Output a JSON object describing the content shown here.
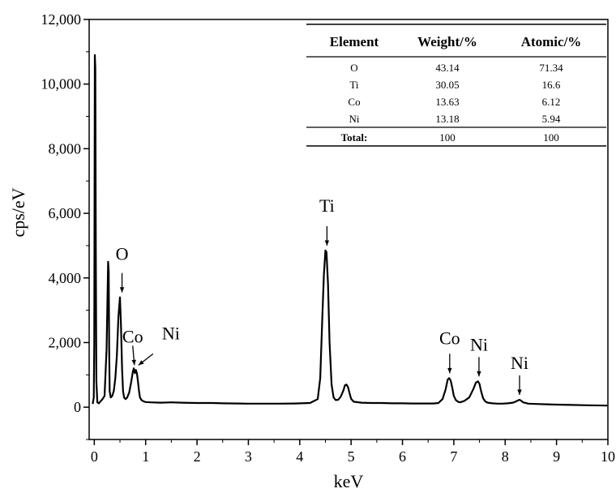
{
  "chart_data": {
    "type": "line",
    "title": "",
    "xlabel": "keV",
    "ylabel": "cps/eV",
    "xlim": [
      -0.1,
      10
    ],
    "ylim": [
      -1000,
      12000
    ],
    "x_ticks": [
      0,
      1,
      2,
      3,
      4,
      5,
      6,
      7,
      8,
      9,
      10
    ],
    "x_tick_labels": [
      "0",
      "1",
      "2",
      "3",
      "4",
      "5",
      "6",
      "7",
      "8",
      "9",
      "10"
    ],
    "y_ticks": [
      0,
      2000,
      4000,
      6000,
      8000,
      10000,
      12000
    ],
    "y_tick_labels": [
      "0",
      "2,000",
      "4,000",
      "6,000",
      "8,000",
      "10,000",
      "12,000"
    ],
    "grid": false,
    "line_color": "#000000",
    "series": [
      {
        "x": [
          -0.03,
          -0.01,
          0.0,
          0.01,
          0.02,
          0.03,
          0.04,
          0.06,
          0.09,
          0.12,
          0.16,
          0.2,
          0.24,
          0.27,
          0.28,
          0.29,
          0.3,
          0.32,
          0.35,
          0.38,
          0.41,
          0.44,
          0.47,
          0.5,
          0.52,
          0.54,
          0.56,
          0.58,
          0.61,
          0.64,
          0.68,
          0.72,
          0.75,
          0.77,
          0.79,
          0.81,
          0.83,
          0.85,
          0.87,
          0.89,
          0.92,
          0.96,
          1.0,
          1.1,
          1.3,
          1.5,
          1.7,
          2.0,
          2.3,
          2.5,
          2.8,
          3.0,
          3.3,
          3.6,
          3.9,
          4.2,
          4.35,
          4.4,
          4.44,
          4.47,
          4.5,
          4.52,
          4.55,
          4.58,
          4.62,
          4.66,
          4.7,
          4.75,
          4.8,
          4.85,
          4.88,
          4.91,
          4.94,
          4.97,
          5.0,
          5.05,
          5.2,
          5.4,
          5.6,
          5.8,
          6.0,
          6.2,
          6.4,
          6.6,
          6.7,
          6.78,
          6.84,
          6.88,
          6.91,
          6.94,
          6.97,
          7.0,
          7.04,
          7.08,
          7.12,
          7.2,
          7.3,
          7.38,
          7.43,
          7.47,
          7.5,
          7.53,
          7.57,
          7.61,
          7.66,
          7.75,
          7.85,
          7.95,
          8.05,
          8.15,
          8.2,
          8.25,
          8.28,
          8.31,
          8.35,
          8.45,
          8.6,
          8.8,
          9.0,
          9.3,
          9.6,
          10.0
        ],
        "y": [
          100,
          300,
          2000,
          10900,
          10500,
          5000,
          800,
          150,
          120,
          180,
          250,
          350,
          1800,
          4500,
          4200,
          1800,
          500,
          300,
          350,
          500,
          900,
          1600,
          2800,
          3400,
          2500,
          1200,
          500,
          300,
          250,
          300,
          450,
          800,
          1100,
          1200,
          1050,
          1150,
          1050,
          800,
          500,
          300,
          220,
          180,
          160,
          150,
          140,
          150,
          140,
          130,
          130,
          120,
          115,
          110,
          110,
          110,
          115,
          130,
          250,
          900,
          2800,
          4100,
          4850,
          4800,
          3800,
          2000,
          700,
          300,
          220,
          230,
          330,
          520,
          680,
          700,
          620,
          430,
          260,
          170,
          140,
          130,
          130,
          120,
          120,
          115,
          115,
          115,
          130,
          250,
          550,
          850,
          900,
          820,
          600,
          350,
          220,
          170,
          150,
          190,
          300,
          560,
          760,
          800,
          720,
          500,
          280,
          180,
          140,
          120,
          110,
          110,
          120,
          140,
          170,
          210,
          230,
          200,
          150,
          110,
          100,
          90,
          80,
          70,
          60,
          50
        ]
      }
    ],
    "annotations": [
      {
        "label": "O",
        "x": 0.54,
        "y": 3400
      },
      {
        "label": "Co",
        "x": 0.78,
        "y": 1150
      },
      {
        "label": "Ni",
        "x": 0.86,
        "y": 1150
      },
      {
        "label": "Ti",
        "x": 4.53,
        "y": 4850
      },
      {
        "label": "Co",
        "x": 6.92,
        "y": 900
      },
      {
        "label": "Ni",
        "x": 7.49,
        "y": 800
      },
      {
        "label": "Ni",
        "x": 8.28,
        "y": 230
      }
    ],
    "table": {
      "headers": [
        "Element",
        "Weight/%",
        "Atomic/%"
      ],
      "rows": [
        [
          "O",
          "43.14",
          "71.34"
        ],
        [
          "Ti",
          "30.05",
          "16.6"
        ],
        [
          "Co",
          "13.63",
          "6.12"
        ],
        [
          "Ni",
          "13.18",
          "5.94"
        ]
      ],
      "total": [
        "Total:",
        "100",
        "100"
      ]
    }
  }
}
